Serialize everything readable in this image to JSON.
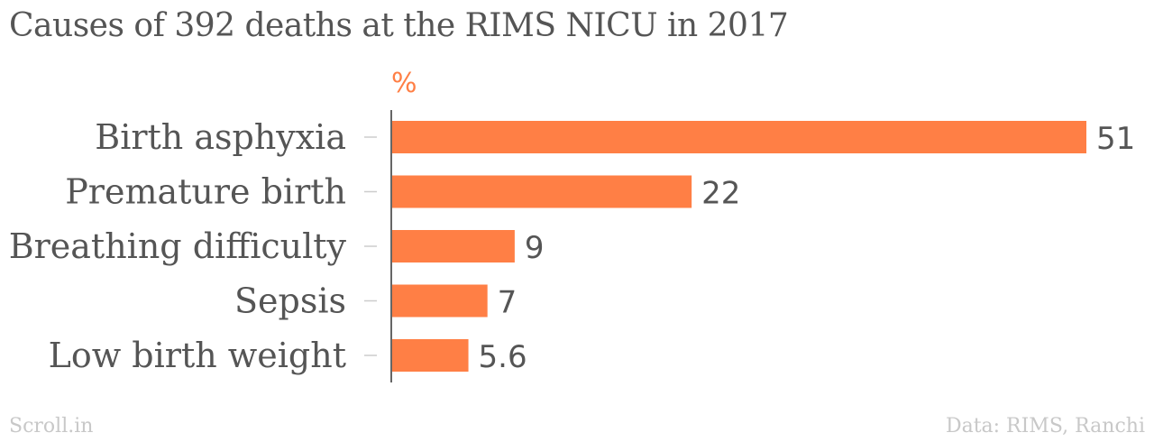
{
  "chart_data": {
    "type": "bar",
    "orientation": "horizontal",
    "title": "Causes of 392 deaths at the RIMS NICU in 2017",
    "unit_label": "%",
    "categories": [
      "Birth asphyxia",
      "Premature birth",
      "Breathing difficulty",
      "Sepsis",
      "Low birth weight"
    ],
    "values": [
      51,
      22,
      9,
      7,
      5.6
    ],
    "value_labels": [
      "51",
      "22",
      "9",
      "7",
      "5.6"
    ],
    "xlim": [
      0,
      51
    ],
    "grid": false,
    "legend": "none"
  },
  "colors": {
    "bar": "#FF7F45",
    "unit": "#FF7F45",
    "text": "#555555",
    "footer": "#c8c8c8",
    "axis": "#333333",
    "tick": "#cccccc"
  },
  "footer": {
    "brand": "Scroll.in",
    "source": "Data: RIMS, Ranchi"
  }
}
